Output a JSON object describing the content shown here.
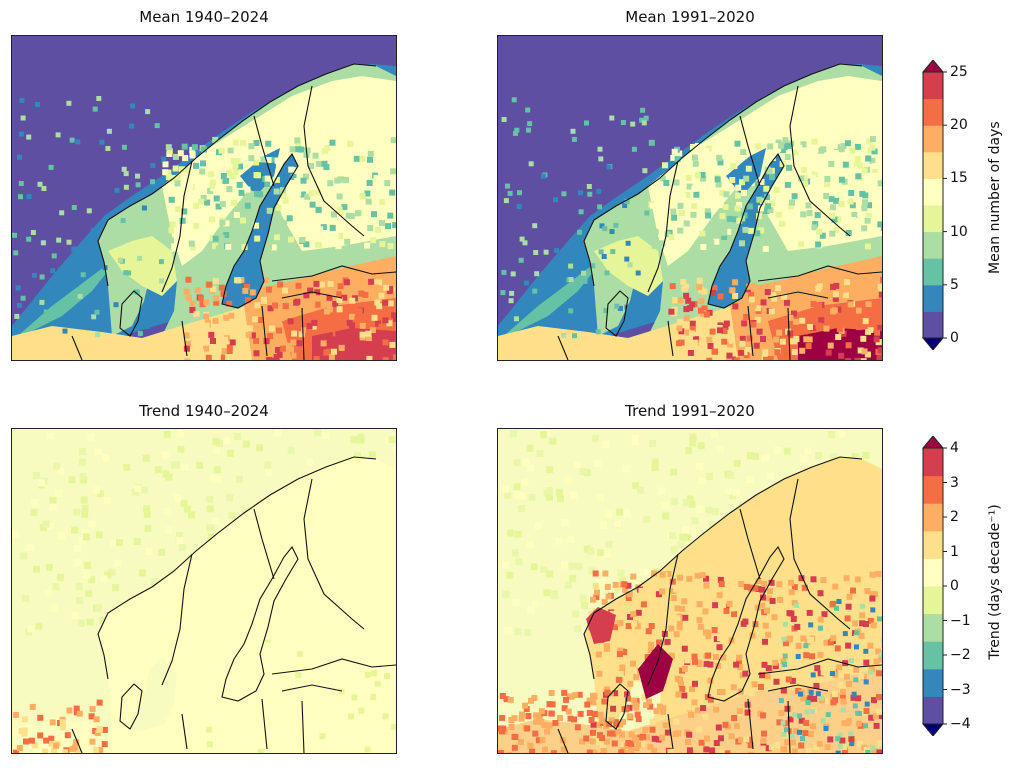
{
  "panels": [
    {
      "title": "Mean 1940–2024",
      "variable": "mean",
      "period": "1940-2024"
    },
    {
      "title": "Mean 1991–2020",
      "variable": "mean",
      "period": "1991-2020"
    },
    {
      "title": "Trend 1940–2024",
      "variable": "trend",
      "period": "1940-2024"
    },
    {
      "title": "Trend 1991–2020",
      "variable": "trend",
      "period": "1991-2020"
    }
  ],
  "colorbars": {
    "mean": {
      "label": "Mean number of days",
      "ticks": [
        "0",
        "5",
        "10",
        "15",
        "20",
        "25"
      ],
      "colors": [
        "#5e4fa2",
        "#3288bd",
        "#66c2a5",
        "#abdda4",
        "#e6f598",
        "#ffffbf",
        "#fee08b",
        "#fdae61",
        "#f46d43",
        "#d53e4f",
        "#9e0142"
      ],
      "under_color": "#00007a",
      "over_color": "#9e0142"
    },
    "trend": {
      "label": "Trend (days decade⁻¹)",
      "ticks": [
        "4",
        "3",
        "2",
        "1",
        "0",
        "−1",
        "−2",
        "−3",
        "−4"
      ],
      "colors": [
        "#5e4fa2",
        "#3288bd",
        "#66c2a5",
        "#abdda4",
        "#e6f598",
        "#ffffbf",
        "#fee08b",
        "#fdae61",
        "#f46d43",
        "#d53e4f",
        "#9e0142"
      ],
      "under_color": "#00007a",
      "over_color": "#9e0142"
    }
  }
}
